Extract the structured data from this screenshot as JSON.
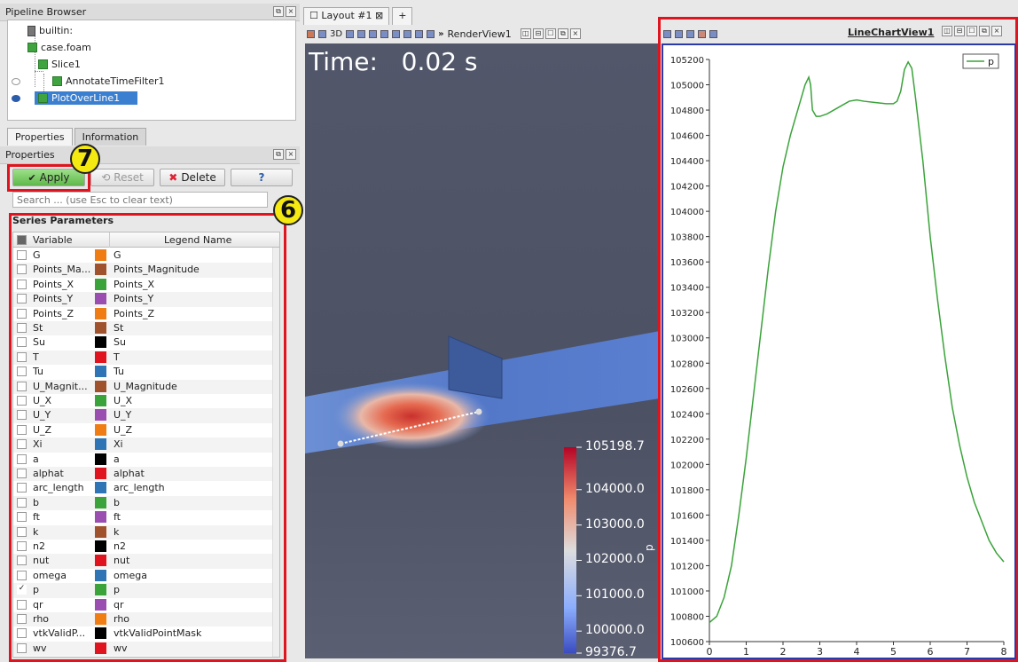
{
  "pipeline_browser": {
    "title": "Pipeline Browser",
    "items": [
      "builtin:",
      "case.foam",
      "Slice1",
      "AnnotateTimeFilter1",
      "PlotOverLine1"
    ]
  },
  "properties_tabs": [
    "Properties",
    "Information"
  ],
  "properties_panel": {
    "title": "Properties"
  },
  "buttons": {
    "apply": "Apply",
    "reset": "Reset",
    "delete": "Delete",
    "help": "?"
  },
  "search": {
    "placeholder": "Search ... (use Esc to clear text)"
  },
  "series": {
    "title": "Series Parameters",
    "col_variable": "Variable",
    "col_legend": "Legend Name",
    "rows": [
      {
        "var": "G",
        "legend": "G",
        "color": "#f07d14",
        "checked": false
      },
      {
        "var": "Points_Ma...",
        "legend": "Points_Magnitude",
        "color": "#a0522d",
        "checked": false
      },
      {
        "var": "Points_X",
        "legend": "Points_X",
        "color": "#3aa33a",
        "checked": false
      },
      {
        "var": "Points_Y",
        "legend": "Points_Y",
        "color": "#9a4fb0",
        "checked": false
      },
      {
        "var": "Points_Z",
        "legend": "Points_Z",
        "color": "#f07d14",
        "checked": false
      },
      {
        "var": "St",
        "legend": "St",
        "color": "#a0522d",
        "checked": false
      },
      {
        "var": "Su",
        "legend": "Su",
        "color": "#000000",
        "checked": false
      },
      {
        "var": "T",
        "legend": "T",
        "color": "#e0141e",
        "checked": false
      },
      {
        "var": "Tu",
        "legend": "Tu",
        "color": "#2f75b5",
        "checked": false
      },
      {
        "var": "U_Magnit...",
        "legend": "U_Magnitude",
        "color": "#a0522d",
        "checked": false
      },
      {
        "var": "U_X",
        "legend": "U_X",
        "color": "#3aa33a",
        "checked": false
      },
      {
        "var": "U_Y",
        "legend": "U_Y",
        "color": "#9a4fb0",
        "checked": false
      },
      {
        "var": "U_Z",
        "legend": "U_Z",
        "color": "#f07d14",
        "checked": false
      },
      {
        "var": "Xi",
        "legend": "Xi",
        "color": "#2f75b5",
        "checked": false
      },
      {
        "var": "a",
        "legend": "a",
        "color": "#000000",
        "checked": false
      },
      {
        "var": "alphat",
        "legend": "alphat",
        "color": "#e0141e",
        "checked": false
      },
      {
        "var": "arc_length",
        "legend": "arc_length",
        "color": "#2f75b5",
        "checked": false
      },
      {
        "var": "b",
        "legend": "b",
        "color": "#3aa33a",
        "checked": false
      },
      {
        "var": "ft",
        "legend": "ft",
        "color": "#9a4fb0",
        "checked": false
      },
      {
        "var": "k",
        "legend": "k",
        "color": "#a0522d",
        "checked": false
      },
      {
        "var": "n2",
        "legend": "n2",
        "color": "#000000",
        "checked": false
      },
      {
        "var": "nut",
        "legend": "nut",
        "color": "#e0141e",
        "checked": false
      },
      {
        "var": "omega",
        "legend": "omega",
        "color": "#2f75b5",
        "checked": false
      },
      {
        "var": "p",
        "legend": "p",
        "color": "#3aa33a",
        "checked": true
      },
      {
        "var": "qr",
        "legend": "qr",
        "color": "#9a4fb0",
        "checked": false
      },
      {
        "var": "rho",
        "legend": "rho",
        "color": "#f07d14",
        "checked": false
      },
      {
        "var": "vtkValidP...",
        "legend": "vtkValidPointMask",
        "color": "#000000",
        "checked": false
      },
      {
        "var": "wv",
        "legend": "wv",
        "color": "#e0141e",
        "checked": false
      }
    ]
  },
  "annotations": {
    "badge_apply": "7",
    "badge_series": "6"
  },
  "layout": {
    "tab": "Layout #1",
    "add_tab": "+",
    "render_view": "RenderView1",
    "toolbar_3d": "3D"
  },
  "render": {
    "time_label": "Time:",
    "time_value": "0.02 s",
    "colorbar_title": "p",
    "colorbar_labels": [
      "105198.7",
      "104000.0",
      "103000.0",
      "102000.0",
      "101000.0",
      "100000.0",
      "99376.7"
    ],
    "colorbar_values": [
      105198.7,
      104000.0,
      103000.0,
      102000.0,
      101000.0,
      100000.0,
      99376.7
    ],
    "colorbar_range": [
      99376.7,
      105198.7
    ]
  },
  "chart_view": {
    "title": "LineChartView1"
  },
  "chart_data": {
    "type": "line",
    "title": "",
    "xlabel": "",
    "ylabel": "",
    "xlim": [
      0,
      8
    ],
    "ylim": [
      100600,
      105200
    ],
    "xticks": [
      0,
      1,
      2,
      3,
      4,
      5,
      6,
      7,
      8
    ],
    "yticks": [
      100600,
      100800,
      101000,
      101200,
      101400,
      101600,
      101800,
      102000,
      102200,
      102400,
      102600,
      102800,
      103000,
      103200,
      103400,
      103600,
      103800,
      104000,
      104200,
      104400,
      104600,
      104800,
      105000,
      105200
    ],
    "legend": "top-right",
    "series": [
      {
        "name": "p",
        "color": "#3aa33a",
        "x": [
          0,
          0.2,
          0.4,
          0.6,
          0.8,
          1.0,
          1.2,
          1.4,
          1.6,
          1.8,
          2.0,
          2.2,
          2.4,
          2.6,
          2.7,
          2.75,
          2.8,
          2.9,
          3.0,
          3.2,
          3.5,
          3.8,
          4.0,
          4.2,
          4.5,
          4.8,
          5.0,
          5.1,
          5.2,
          5.3,
          5.4,
          5.5,
          5.6,
          5.8,
          6.0,
          6.2,
          6.4,
          6.6,
          6.8,
          7.0,
          7.2,
          7.4,
          7.6,
          7.8,
          8.0
        ],
        "values": [
          100750,
          100800,
          100950,
          101200,
          101600,
          102050,
          102550,
          103050,
          103550,
          104000,
          104350,
          104600,
          104800,
          105000,
          105060,
          105000,
          104800,
          104750,
          104750,
          104770,
          104820,
          104870,
          104880,
          104870,
          104860,
          104850,
          104850,
          104870,
          104950,
          105120,
          105180,
          105130,
          104900,
          104400,
          103800,
          103300,
          102850,
          102450,
          102150,
          101900,
          101700,
          101550,
          101400,
          101300,
          101230
        ]
      }
    ]
  }
}
